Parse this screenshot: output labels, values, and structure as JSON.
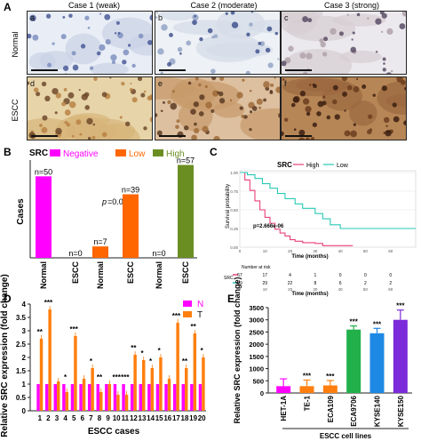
{
  "panelA": {
    "letter": "A",
    "case_headers": [
      "Case 1 (weak)",
      "Case 2 (moderate)",
      "Case 3 (strong)"
    ],
    "row_labels": [
      "Normal",
      "ESCC"
    ],
    "sublabels": [
      "a",
      "b",
      "c",
      "d",
      "e",
      "f"
    ]
  },
  "panelB": {
    "letter": "B",
    "legend_title": "SRC",
    "legend": [
      "Negative",
      "Low",
      "High"
    ],
    "ylabel": "Cases",
    "pvalue_prefix": "p",
    "pvalue_rest": "=0.000",
    "colors": {
      "Negative": "#ff00ff",
      "Low": "#ff6600",
      "High": "#6b8e23"
    }
  },
  "panelC": {
    "letter": "C",
    "legend_title": "SRC",
    "legend": [
      "High",
      "Low"
    ],
    "ylabel": "Survival probability",
    "xlabel": "Time (months)",
    "pvalue": "p=2.666e-06",
    "risk_title": "Number at risk",
    "risk_group_label": "SRC",
    "risk_high": [
      "57",
      "17",
      "4",
      "1",
      "0",
      "0",
      "0"
    ],
    "risk_low": [
      "39",
      "29",
      "22",
      "8",
      "6",
      "2",
      "2"
    ],
    "colors": {
      "High": "#e8407a",
      "Low": "#27c9b4"
    }
  },
  "panelD": {
    "letter": "D",
    "legend": [
      "N",
      "T"
    ],
    "ylabel": "Relative SRC expression (fold change)",
    "xlabel": "ESCC cases",
    "colors": {
      "N": "#ff00ff",
      "T": "#ff7f0e"
    }
  },
  "panelE": {
    "letter": "E",
    "ylabel": "Relative SRC expression (fold change)",
    "group_label": "ESCC cell lines",
    "sig": "***"
  },
  "chart_data": [
    {
      "type": "bar",
      "title": "",
      "ylabel": "Cases",
      "ylim": [
        0,
        60
      ],
      "categories": [
        "Normal",
        "ESCC",
        "Normal",
        "ESCC",
        "Normal",
        "ESCC"
      ],
      "groups": [
        "Negative",
        "Negative",
        "Low",
        "Low",
        "High",
        "High"
      ],
      "values": [
        50,
        0,
        7,
        39,
        0,
        57
      ],
      "data_labels": [
        "n=50",
        "n=0",
        "n=7",
        "n=39",
        "n=0",
        "n=57"
      ],
      "legend_position": "top"
    },
    {
      "type": "line",
      "title": "",
      "xlabel": "Time (months)",
      "ylabel": "Survival probability",
      "xlim": [
        0,
        70
      ],
      "ylim": [
        0,
        1
      ],
      "xticks": [
        "0",
        "10",
        "20",
        "30",
        "40",
        "50",
        "60"
      ],
      "yticks": [
        "0.00",
        "0.25",
        "0.50",
        "0.75",
        "1.00"
      ],
      "series": [
        {
          "name": "High",
          "x": [
            0,
            2,
            4,
            6,
            8,
            10,
            12,
            14,
            16,
            18,
            20,
            22,
            25,
            30,
            33,
            40,
            45
          ],
          "y": [
            1.0,
            0.9,
            0.76,
            0.62,
            0.5,
            0.4,
            0.32,
            0.24,
            0.19,
            0.15,
            0.1,
            0.08,
            0.06,
            0.05,
            0.02,
            0.02,
            0.02
          ]
        },
        {
          "name": "Low",
          "x": [
            0,
            3,
            6,
            9,
            12,
            15,
            18,
            22,
            25,
            30,
            33,
            36,
            40,
            70
          ],
          "y": [
            1.0,
            0.97,
            0.92,
            0.85,
            0.79,
            0.72,
            0.65,
            0.58,
            0.52,
            0.45,
            0.38,
            0.3,
            0.25,
            0.25
          ]
        }
      ],
      "grid": true,
      "legend_position": "top"
    },
    {
      "type": "bar",
      "title": "",
      "xlabel": "ESCC cases",
      "ylabel": "Relative SRC expression (fold change)",
      "ylim": [
        0,
        4
      ],
      "yticks": [
        "0",
        "0.5",
        "1",
        "1.5",
        "2",
        "2.5",
        "3",
        "3.5",
        "4"
      ],
      "categories": [
        "1",
        "2",
        "3",
        "4",
        "5",
        "6",
        "7",
        "8",
        "9",
        "10",
        "11",
        "12",
        "13",
        "14",
        "15",
        "16",
        "17",
        "18",
        "19",
        "20"
      ],
      "series": [
        {
          "name": "N",
          "values": [
            1,
            1,
            1,
            1,
            1,
            1,
            1,
            1,
            1,
            1,
            1,
            1,
            1,
            1,
            1,
            1,
            1,
            1,
            1,
            1
          ]
        },
        {
          "name": "T",
          "values": [
            2.7,
            3.8,
            1.1,
            0.7,
            2.8,
            1.2,
            1.6,
            0.7,
            1.0,
            0.6,
            0.6,
            2.1,
            1.9,
            1.6,
            2.0,
            1.2,
            3.3,
            1.6,
            2.9,
            2.0
          ]
        }
      ],
      "significance": [
        "**",
        "***",
        "",
        "*",
        "***",
        "",
        "*",
        "**",
        "",
        "***",
        "***",
        "**",
        "*",
        "*",
        "*",
        "",
        "***",
        "**",
        "**",
        "*"
      ],
      "legend_position": "top-right"
    },
    {
      "type": "bar",
      "title": "",
      "ylabel": "Relative SRC expression (fold change)",
      "ylim": [
        0,
        3500
      ],
      "yticks": [
        "0",
        "500",
        "1000",
        "1500",
        "2000",
        "2500",
        "3000",
        "3500"
      ],
      "categories": [
        "HET-1A",
        "TE-1",
        "ECA109",
        "ECA9706",
        "KYSE140",
        "KYSE150"
      ],
      "values": [
        1,
        280,
        310,
        2600,
        2450,
        3000
      ],
      "errors": [
        300,
        250,
        200,
        150,
        200,
        400
      ],
      "colors": [
        "#ff00ff",
        "#ff7f0e",
        "#ff7f0e",
        "#22b04a",
        "#1e88e5",
        "#7b2bd9"
      ],
      "significance": [
        "",
        "***",
        "***",
        "***",
        "***",
        "***"
      ],
      "group_label": "ESCC cell lines"
    }
  ]
}
